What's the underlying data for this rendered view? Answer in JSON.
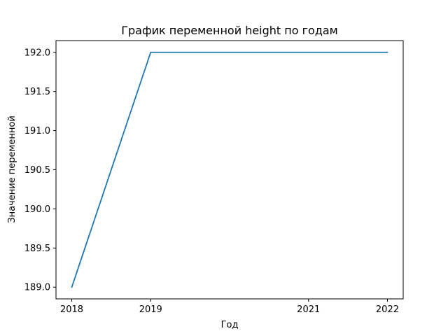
{
  "chart_data": {
    "type": "line",
    "title": "График переменной height по годам",
    "xlabel": "Год",
    "ylabel": "Значение переменной",
    "x": [
      2018,
      2019,
      2020,
      2021,
      2022
    ],
    "series": [
      {
        "values": [
          189.0,
          192.0,
          192.0,
          192.0,
          192.0
        ],
        "color": "#1f77b4"
      }
    ],
    "xticks": [
      "2018",
      "2019",
      "2021",
      "2022"
    ],
    "xtick_values": [
      2018,
      2019,
      2021,
      2022
    ],
    "yticks": [
      "189.0",
      "189.5",
      "190.0",
      "190.5",
      "191.0",
      "191.5",
      "192.0"
    ],
    "ytick_values": [
      189.0,
      189.5,
      190.0,
      190.5,
      191.0,
      191.5,
      192.0
    ],
    "xlim": [
      2017.8,
      2022.2
    ],
    "ylim": [
      188.85,
      192.15
    ],
    "grid": false,
    "legend": "none"
  }
}
